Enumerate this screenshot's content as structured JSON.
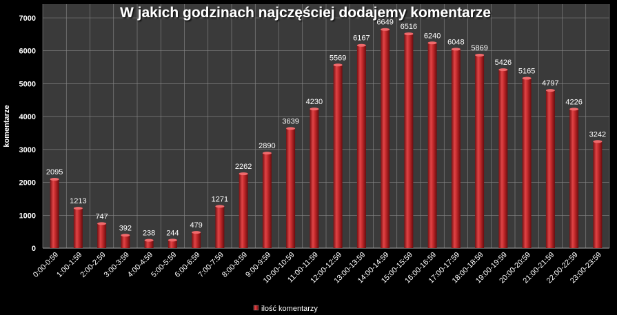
{
  "chart_data": {
    "type": "bar",
    "title": "W jakich godzinach najczęściej dodajemy komentarze",
    "xlabel": "",
    "ylabel": "komentarze",
    "ylim": [
      0,
      7000
    ],
    "yticks": [
      0,
      1000,
      2000,
      3000,
      4000,
      5000,
      6000,
      7000
    ],
    "grid": true,
    "legend_position": "bottom",
    "categories": [
      "0:00-0:59",
      "1:00-1:59",
      "2:00-2:59",
      "3:00-3:59",
      "4:00-4:59",
      "5:00-5:59",
      "6:00-6:59",
      "7:00-7:59",
      "8:00-8:59",
      "9:00-9:59",
      "10:00-10:59",
      "11:00-11:59",
      "12:00-12:59",
      "13:00-13:59",
      "14:00-14:59",
      "15:00-15:59",
      "16:00-16:59",
      "17:00-17:59",
      "18:00-18:59",
      "19:00-19:59",
      "20:00-20:59",
      "21:00-21:59",
      "22:00-22:59",
      "23:00-23:59"
    ],
    "series": [
      {
        "name": "ilość komentarzy",
        "color": "#c0282a",
        "values": [
          2095,
          1213,
          747,
          392,
          238,
          244,
          479,
          1271,
          2262,
          2890,
          3639,
          4230,
          5569,
          6167,
          6649,
          6516,
          6240,
          6048,
          5869,
          5426,
          5165,
          4797,
          4226,
          3242
        ]
      }
    ],
    "colors": {
      "background": "#000000",
      "plot_area": "#3a3a3a",
      "grid": "#8a8a8a",
      "bar": "#c0282a",
      "text": "#ffffff"
    }
  }
}
